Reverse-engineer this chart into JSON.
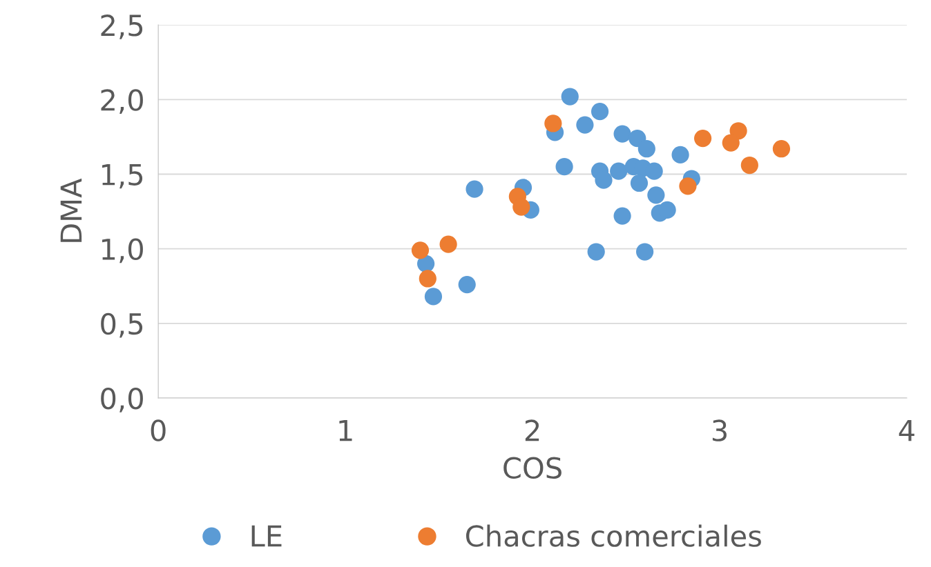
{
  "chart_data": {
    "type": "scatter",
    "xlabel": "COS",
    "ylabel": "DMA",
    "xlim": [
      0,
      4
    ],
    "xticks": [
      0,
      1,
      2,
      3,
      4
    ],
    "ylim": [
      0,
      2.5
    ],
    "yticks": [
      {
        "value": 0,
        "label": "0,0"
      },
      {
        "value": 0.5,
        "label": "0,5"
      },
      {
        "value": 1.0,
        "label": "1,0"
      },
      {
        "value": 1.5,
        "label": "1,5"
      },
      {
        "value": 2.0,
        "label": "2,0"
      },
      {
        "value": 2.5,
        "label": "2,5"
      }
    ],
    "grid": "y",
    "legend": "bottom",
    "marker": "circle",
    "series": [
      {
        "name": "LE",
        "color": "#5b9bd5",
        "x": [
          2.2,
          2.36,
          2.28,
          2.12,
          2.48,
          2.56,
          2.61,
          2.79,
          2.17,
          2.36,
          2.46,
          2.54,
          2.59,
          2.65,
          2.85,
          2.38,
          2.57,
          2.66,
          2.68,
          2.72,
          2.48,
          1.95,
          1.99,
          1.69,
          2.34,
          2.6,
          1.43,
          1.47,
          1.65
        ],
        "values": [
          2.02,
          1.92,
          1.83,
          1.78,
          1.77,
          1.74,
          1.67,
          1.63,
          1.55,
          1.52,
          1.52,
          1.55,
          1.54,
          1.52,
          1.47,
          1.46,
          1.44,
          1.36,
          1.24,
          1.26,
          1.22,
          1.41,
          1.26,
          1.4,
          0.98,
          0.98,
          0.9,
          0.68,
          0.76
        ]
      },
      {
        "name": "Chacras comerciales",
        "color": "#ed7d31",
        "x": [
          2.11,
          2.91,
          3.1,
          3.06,
          3.33,
          3.16,
          2.83,
          1.92,
          1.94,
          1.4,
          1.55,
          1.44
        ],
        "values": [
          1.84,
          1.74,
          1.79,
          1.71,
          1.67,
          1.56,
          1.42,
          1.35,
          1.28,
          0.99,
          1.03,
          0.8
        ]
      }
    ]
  }
}
